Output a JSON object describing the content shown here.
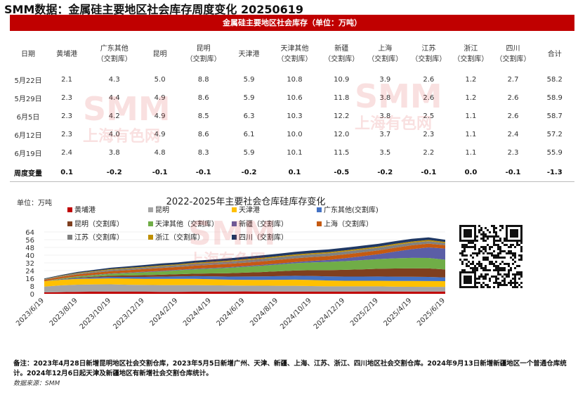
{
  "title": "SMM数据：金属硅主要地区社会库存周度变化 20250619",
  "table": {
    "banner": "金属硅主要地区社会库存（单位：万吨）",
    "headers": [
      [
        "日期",
        ""
      ],
      [
        "黄埔港",
        ""
      ],
      [
        "广东其他",
        "（交割库）"
      ],
      [
        "昆明",
        ""
      ],
      [
        "昆明",
        "（交割库）"
      ],
      [
        "天津港",
        ""
      ],
      [
        "天津其他",
        "（交割库）"
      ],
      [
        "新疆",
        "（交割库）"
      ],
      [
        "上海",
        "（交割库）"
      ],
      [
        "江苏",
        "（交割库）"
      ],
      [
        "浙江",
        "（交割库）"
      ],
      [
        "四川",
        "（交割库）"
      ],
      [
        "合计",
        ""
      ]
    ],
    "rows": [
      [
        "5月22日",
        "2.1",
        "4.3",
        "5.0",
        "8.8",
        "5.9",
        "10.8",
        "10.9",
        "3.9",
        "2.6",
        "1.2",
        "2.7",
        "58.2"
      ],
      [
        "5月29日",
        "2.3",
        "4.4",
        "4.9",
        "8.6",
        "5.9",
        "10.6",
        "11.8",
        "3.8",
        "2.6",
        "1.2",
        "2.6",
        "58.9"
      ],
      [
        "6月5日",
        "2.3",
        "4.2",
        "4.9",
        "8.5",
        "6.3",
        "10.3",
        "12.2",
        "3.8",
        "2.5",
        "1.1",
        "2.6",
        "58.7"
      ],
      [
        "6月12日",
        "2.3",
        "4.0",
        "4.9",
        "8.6",
        "6.1",
        "10.0",
        "12.0",
        "3.7",
        "2.3",
        "1.1",
        "2.4",
        "57.2"
      ],
      [
        "6月19日",
        "2.4",
        "3.8",
        "4.8",
        "8.3",
        "5.9",
        "10.1",
        "11.5",
        "3.5",
        "2.2",
        "1.1",
        "2.3",
        "55.9"
      ]
    ],
    "change_row": [
      "周度变量",
      "0.1",
      "-0.2",
      "-0.1",
      "-0.1",
      "-0.2",
      "0.1",
      "-0.5",
      "-0.2",
      "-0.1",
      "0.0",
      "-0.1",
      "-1.3"
    ]
  },
  "chart_data": {
    "type": "area",
    "title": "2022-2025年主要社会仓库硅库存变化",
    "ylabel": "单位：万吨",
    "ylim": [
      0,
      64
    ],
    "yticks": [
      0,
      8,
      16,
      24,
      32,
      40,
      48,
      56,
      64
    ],
    "x_ticks": [
      "2023/6/19",
      "2023/8/19",
      "2023/10/19",
      "2023/12/19",
      "2024/2/19",
      "2024/4/19",
      "2024/6/19",
      "2024/8/19",
      "2024/10/19",
      "2024/12/19",
      "2025/2/19",
      "2025/4/19",
      "2025/6/19"
    ],
    "x": [
      "2023/6",
      "2023/7",
      "2023/8",
      "2023/9",
      "2023/10",
      "2023/11",
      "2023/12",
      "2024/1",
      "2024/2",
      "2024/3",
      "2024/4",
      "2024/5",
      "2024/6",
      "2024/7",
      "2024/8",
      "2024/9",
      "2024/10",
      "2024/11",
      "2024/12",
      "2025/1",
      "2025/2",
      "2025/3",
      "2025/4",
      "2025/5",
      "2025/6"
    ],
    "series": [
      {
        "name": "黄埔港",
        "color": "#c00000",
        "values": [
          1.5,
          1.7,
          2.0,
          2.2,
          2.3,
          2.2,
          2.2,
          2.0,
          2.0,
          2.2,
          2.3,
          2.4,
          2.5,
          2.4,
          2.3,
          2.3,
          2.2,
          2.2,
          2.2,
          2.4,
          2.5,
          2.4,
          2.3,
          2.2,
          2.4
        ]
      },
      {
        "name": "昆明",
        "color": "#a5a5a5",
        "values": [
          6.0,
          7.0,
          7.5,
          7.5,
          7.5,
          7.2,
          7.0,
          7.0,
          7.0,
          6.8,
          6.5,
          6.2,
          6.0,
          6.0,
          6.0,
          6.0,
          5.8,
          5.5,
          5.5,
          5.3,
          5.2,
          5.0,
          5.0,
          5.0,
          4.8
        ]
      },
      {
        "name": "天津港",
        "color": "#ffc000",
        "values": [
          5.5,
          5.8,
          6.0,
          6.0,
          6.2,
          6.3,
          6.3,
          6.5,
          6.5,
          6.5,
          6.3,
          6.0,
          6.0,
          6.0,
          6.2,
          6.3,
          6.3,
          6.0,
          5.8,
          5.8,
          5.8,
          5.9,
          6.0,
          6.0,
          5.9
        ]
      },
      {
        "name": "广东其他(交割库)",
        "color": "#4472c4",
        "values": [
          0.0,
          0.4,
          0.8,
          1.2,
          1.5,
          1.8,
          2.0,
          2.2,
          2.5,
          2.8,
          3.0,
          3.2,
          3.4,
          3.6,
          3.8,
          4.0,
          4.2,
          4.3,
          4.3,
          4.3,
          4.4,
          4.4,
          4.3,
          4.3,
          3.8
        ]
      },
      {
        "name": "昆明（交割库）",
        "color": "#7f3f1f",
        "values": [
          0.0,
          0.3,
          0.6,
          0.9,
          1.2,
          1.5,
          1.8,
          2.0,
          2.3,
          2.5,
          3.0,
          3.5,
          4.0,
          4.5,
          5.0,
          5.5,
          6.0,
          6.5,
          7.0,
          7.5,
          8.0,
          8.5,
          8.8,
          8.8,
          8.3
        ]
      },
      {
        "name": "天津其他（交割库）",
        "color": "#70ad47",
        "values": [
          0.0,
          0.5,
          1.0,
          1.5,
          2.0,
          2.5,
          3.0,
          3.5,
          4.0,
          4.5,
          5.0,
          5.5,
          6.0,
          6.5,
          7.0,
          7.5,
          8.0,
          8.5,
          9.0,
          9.5,
          10.0,
          10.5,
          10.8,
          10.8,
          10.1
        ]
      },
      {
        "name": "新疆（交割库）",
        "color": "#5b5ea6",
        "values": [
          0.0,
          0.1,
          0.2,
          0.3,
          0.4,
          0.4,
          0.5,
          0.5,
          0.5,
          0.6,
          0.6,
          0.7,
          0.8,
          0.9,
          1.0,
          1.2,
          1.5,
          2.0,
          3.0,
          4.0,
          5.0,
          7.0,
          9.0,
          10.9,
          11.5
        ]
      },
      {
        "name": "上海（交割库）",
        "color": "#c55a11",
        "values": [
          1.5,
          1.8,
          2.0,
          2.2,
          2.4,
          2.6,
          2.8,
          3.0,
          3.0,
          3.2,
          3.3,
          3.4,
          3.5,
          3.6,
          3.8,
          3.9,
          4.0,
          4.0,
          4.0,
          4.0,
          4.0,
          4.0,
          4.0,
          3.9,
          3.5
        ]
      },
      {
        "name": "江苏（交割库）",
        "color": "#808080",
        "values": [
          0.5,
          0.7,
          1.0,
          1.2,
          1.4,
          1.5,
          1.6,
          1.8,
          1.8,
          2.0,
          2.2,
          2.4,
          2.5,
          2.6,
          2.7,
          2.8,
          2.8,
          2.9,
          2.9,
          2.9,
          2.8,
          2.8,
          2.7,
          2.6,
          2.2
        ]
      },
      {
        "name": "浙江（交割库）",
        "color": "#bf8f00",
        "values": [
          0.3,
          0.4,
          0.5,
          0.6,
          0.7,
          0.8,
          0.8,
          0.9,
          0.9,
          1.0,
          1.0,
          1.0,
          1.1,
          1.1,
          1.1,
          1.2,
          1.2,
          1.2,
          1.2,
          1.2,
          1.2,
          1.2,
          1.2,
          1.2,
          1.1
        ]
      },
      {
        "name": "四川（交割库）",
        "color": "#1f3864",
        "values": [
          0.5,
          0.8,
          1.0,
          1.2,
          1.4,
          1.6,
          1.8,
          2.0,
          2.0,
          2.1,
          2.2,
          2.3,
          2.4,
          2.5,
          2.6,
          2.7,
          2.8,
          2.8,
          2.8,
          2.8,
          2.8,
          2.8,
          2.8,
          2.7,
          2.3
        ]
      }
    ],
    "legend_position": "top"
  },
  "note": "备注：2023年4月28日新增昆明地区社会交割仓库，2023年5月5日新增广州、天津、新疆、上海、江苏、浙江、四川地区社会交割仓库。2024年9月13日新增新疆地区一个普通仓库统计。2024年12月6日起天津及新疆地区有新增社会交割仓库统计。",
  "source": "数据来源：SMM",
  "watermark": {
    "logo": "SMM",
    "text": "上海有色网"
  }
}
